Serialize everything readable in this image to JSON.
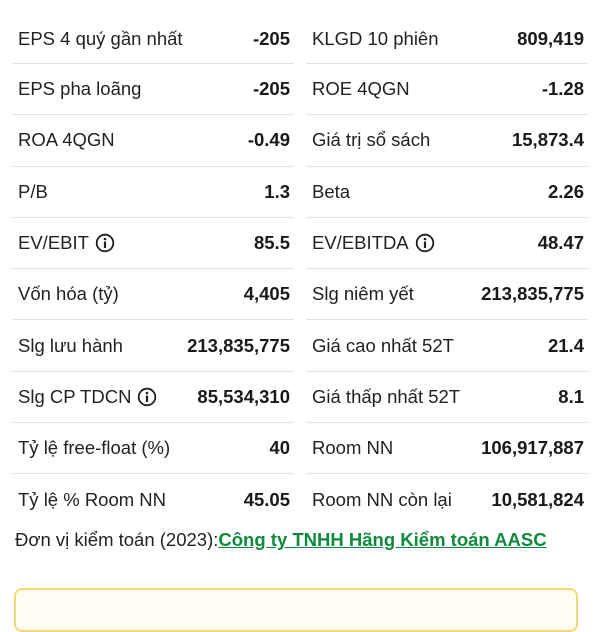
{
  "left_column": [
    {
      "label": "EPS 4 quý gần nhất",
      "value": "-205",
      "info": false
    },
    {
      "label": "EPS pha loãng",
      "value": "-205",
      "info": false
    },
    {
      "label": "ROA 4QGN",
      "value": "-0.49",
      "info": false
    },
    {
      "label": "P/B",
      "value": "1.3",
      "info": false
    },
    {
      "label": "EV/EBIT",
      "value": "85.5",
      "info": true
    },
    {
      "label": "Vốn hóa (tỷ)",
      "value": "4,405",
      "info": false
    },
    {
      "label": "Slg lưu hành",
      "value": "213,835,775",
      "info": false
    },
    {
      "label": "Slg CP TDCN",
      "value": "85,534,310",
      "info": true
    },
    {
      "label": "Tỷ lệ free-float (%)",
      "value": "40",
      "info": false
    },
    {
      "label": "Tỷ lệ % Room NN",
      "value": "45.05",
      "info": false
    }
  ],
  "right_column": [
    {
      "label": "KLGD 10 phiên",
      "value": "809,419",
      "info": false
    },
    {
      "label": "ROE 4QGN",
      "value": "-1.28",
      "info": false
    },
    {
      "label": "Giá trị sổ sách",
      "value": "15,873.4",
      "info": false
    },
    {
      "label": "Beta",
      "value": "2.26",
      "info": false
    },
    {
      "label": "EV/EBITDA",
      "value": "48.47",
      "info": true
    },
    {
      "label": "Slg niêm yết",
      "value": "213,835,775",
      "info": false
    },
    {
      "label": "Giá cao nhất 52T",
      "value": "21.4",
      "info": false
    },
    {
      "label": "Giá thấp nhất 52T",
      "value": "8.1",
      "info": false
    },
    {
      "label": "Room NN",
      "value": "106,917,887",
      "info": false
    },
    {
      "label": "Room NN còn lại",
      "value": "10,581,824",
      "info": false
    }
  ],
  "audit": {
    "prefix": "Đơn vị kiểm toán (2023):",
    "link": "Công ty TNHH Hãng Kiểm toán AASC"
  },
  "colors": {
    "link": "#108a3c",
    "divider": "#e3e3e3",
    "box_border": "#f3d878"
  },
  "icons": {
    "info": "info-circle-icon"
  }
}
